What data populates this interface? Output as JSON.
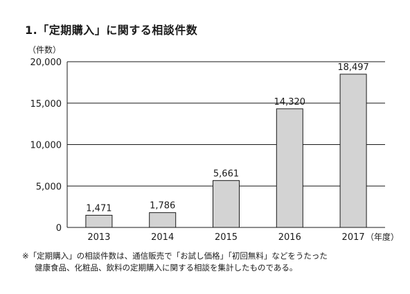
{
  "title": "1.「定期購入」に関する相談件数",
  "chart_data": {
    "type": "bar",
    "categories": [
      "2013",
      "2014",
      "2015",
      "2016",
      "2017"
    ],
    "values": [
      1471,
      1786,
      5661,
      14320,
      18497
    ],
    "value_labels": [
      "1,471",
      "1,786",
      "5,661",
      "14,320",
      "18,497"
    ],
    "ylabel": "（件数）",
    "xlabel": "（年度）",
    "ylim": [
      0,
      20000
    ],
    "yticks": [
      0,
      5000,
      10000,
      15000,
      20000
    ],
    "ytick_labels": [
      "0",
      "5,000",
      "10,000",
      "15,000",
      "20,000"
    ],
    "grid": true,
    "colors": {
      "bar_fill": "#d3d3d3",
      "bar_stroke": "#1a1a1a",
      "grid": "#1a1a1a",
      "text": "#1a1a1a"
    }
  },
  "footnote": {
    "line1": "※「定期購入」の相談件数は、通信販売で「お試し価格」「初回無料」などをうたった",
    "line2": "健康食品、化粧品、飲料の定期購入に関する相談を集計したものである。"
  }
}
